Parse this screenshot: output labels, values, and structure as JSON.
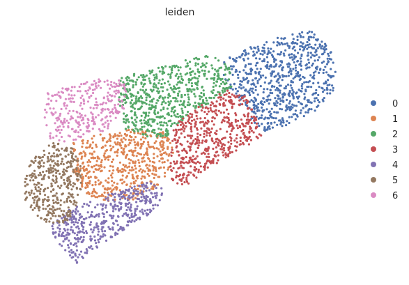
{
  "chart_data": {
    "type": "scatter",
    "title": "leiden",
    "xlabel": "",
    "ylabel": "",
    "grid": false,
    "axes_visible": false,
    "legend_position": "right",
    "legend": [
      {
        "label": "0",
        "color": "#4c72b0"
      },
      {
        "label": "1",
        "color": "#dd8452"
      },
      {
        "label": "2",
        "color": "#55a868"
      },
      {
        "label": "3",
        "color": "#c44e52"
      },
      {
        "label": "4",
        "color": "#8172b3"
      },
      {
        "label": "5",
        "color": "#937860"
      },
      {
        "label": "6",
        "color": "#da8bc3"
      }
    ],
    "series": [
      {
        "cluster": "0",
        "color": "#4c72b0",
        "approx_points": 720,
        "region": [
          [
            322,
            86
          ],
          [
            360,
            66
          ],
          [
            405,
            52
          ],
          [
            445,
            44
          ],
          [
            470,
            62
          ],
          [
            484,
            95
          ],
          [
            478,
            130
          ],
          [
            455,
            158
          ],
          [
            410,
            180
          ],
          [
            380,
            188
          ],
          [
            358,
            170
          ],
          [
            338,
            140
          ],
          [
            320,
            112
          ]
        ]
      },
      {
        "cluster": "1",
        "color": "#dd8452",
        "approx_points": 560,
        "region": [
          [
            105,
            205
          ],
          [
            150,
            190
          ],
          [
            200,
            185
          ],
          [
            238,
            190
          ],
          [
            250,
            215
          ],
          [
            245,
            240
          ],
          [
            230,
            265
          ],
          [
            200,
            285
          ],
          [
            160,
            290
          ],
          [
            125,
            280
          ],
          [
            105,
            250
          ]
        ]
      },
      {
        "cluster": "2",
        "color": "#55a868",
        "approx_points": 620,
        "region": [
          [
            170,
            112
          ],
          [
            215,
            100
          ],
          [
            260,
            88
          ],
          [
            295,
            78
          ],
          [
            330,
            90
          ],
          [
            332,
            125
          ],
          [
            300,
            150
          ],
          [
            265,
            170
          ],
          [
            235,
            200
          ],
          [
            205,
            195
          ],
          [
            180,
            185
          ],
          [
            170,
            150
          ]
        ]
      },
      {
        "cluster": "3",
        "color": "#c44e52",
        "approx_points": 520,
        "region": [
          [
            250,
            178
          ],
          [
            290,
            150
          ],
          [
            325,
            128
          ],
          [
            350,
            135
          ],
          [
            368,
            165
          ],
          [
            375,
            195
          ],
          [
            355,
            210
          ],
          [
            320,
            228
          ],
          [
            290,
            250
          ],
          [
            262,
            270
          ],
          [
            244,
            255
          ],
          [
            245,
            215
          ]
        ]
      },
      {
        "cluster": "4",
        "color": "#8172b3",
        "approx_points": 460,
        "region": [
          [
            72,
            325
          ],
          [
            100,
            300
          ],
          [
            140,
            285
          ],
          [
            180,
            270
          ],
          [
            215,
            258
          ],
          [
            235,
            272
          ],
          [
            225,
            300
          ],
          [
            195,
            320
          ],
          [
            160,
            342
          ],
          [
            130,
            362
          ],
          [
            110,
            378
          ],
          [
            95,
            365
          ],
          [
            80,
            345
          ]
        ]
      },
      {
        "cluster": "5",
        "color": "#937860",
        "approx_points": 380,
        "region": [
          [
            33,
            265
          ],
          [
            45,
            230
          ],
          [
            75,
            205
          ],
          [
            105,
            208
          ],
          [
            118,
            240
          ],
          [
            116,
            285
          ],
          [
            100,
            315
          ],
          [
            75,
            328
          ],
          [
            50,
            308
          ],
          [
            36,
            288
          ]
        ]
      },
      {
        "cluster": "6",
        "color": "#da8bc3",
        "approx_points": 300,
        "region": [
          [
            65,
            135
          ],
          [
            110,
            120
          ],
          [
            160,
            110
          ],
          [
            182,
            120
          ],
          [
            178,
            160
          ],
          [
            160,
            185
          ],
          [
            125,
            195
          ],
          [
            95,
            205
          ],
          [
            70,
            198
          ],
          [
            62,
            165
          ]
        ]
      }
    ]
  }
}
